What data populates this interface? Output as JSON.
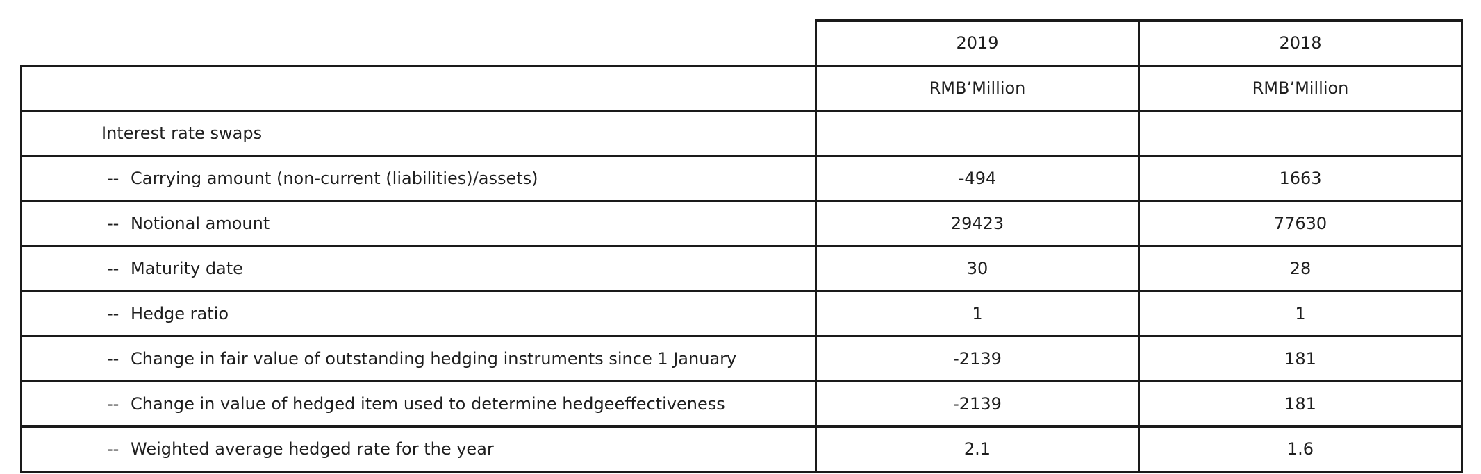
{
  "table": {
    "header_years": [
      "2019",
      "2018"
    ],
    "header_units": [
      "RMB’Million",
      "RMB’Million"
    ],
    "section_label": "Interest rate swaps",
    "item_prefix": "--",
    "rows": [
      {
        "label": "Carrying amount (non-current (liabilities)/assets)",
        "v2019": "-494",
        "v2018": "1663"
      },
      {
        "label": "Notional amount",
        "v2019": "29423",
        "v2018": "77630"
      },
      {
        "label": "Maturity date",
        "v2019": "30",
        "v2018": "28"
      },
      {
        "label": "Hedge ratio",
        "v2019": "1",
        "v2018": "1"
      },
      {
        "label": "Change in fair value of outstanding hedging instruments since 1 January",
        "v2019": "-2139",
        "v2018": "181"
      },
      {
        "label": "Change in value of hedged item used to determine hedgeeffectiveness",
        "v2019": "-2139",
        "v2018": "181"
      },
      {
        "label": "Weighted average hedged rate for the year",
        "v2019": "2.1",
        "v2018": "1.6"
      }
    ]
  }
}
